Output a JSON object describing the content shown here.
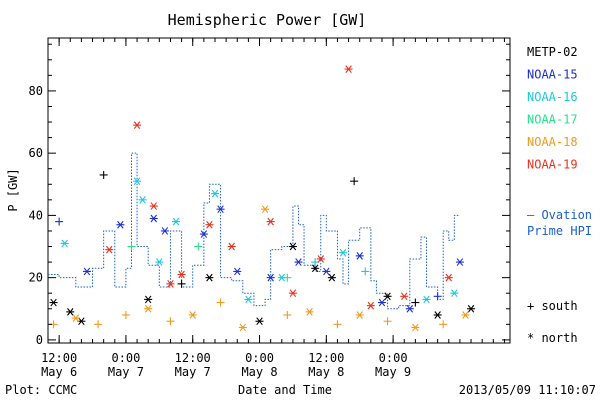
{
  "chart_data": {
    "type": "scatter",
    "title": "Hemispheric Power [GW]",
    "ylabel": "P [GW]",
    "xlabel": "Date and Time",
    "credit": "Plot: CCMC",
    "timestamp": "2013/05/09 11:10:07",
    "ylim": [
      -1,
      97
    ],
    "xlim": [
      "2013-05-06 10:00",
      "2013-05-09 21:00"
    ],
    "yticks": [
      0,
      20,
      40,
      60,
      80
    ],
    "ytick_labels": [
      "0",
      "20",
      "40",
      "60",
      "80"
    ],
    "xticks": [
      {
        "time": "2013-05-06 12:00",
        "line1": "12:00",
        "line2": "May 6"
      },
      {
        "time": "2013-05-07 00:00",
        "line1": "0:00",
        "line2": "May 7"
      },
      {
        "time": "2013-05-07 12:00",
        "line1": "12:00",
        "line2": "May 7"
      },
      {
        "time": "2013-05-08 00:00",
        "line1": "0:00",
        "line2": "May 8"
      },
      {
        "time": "2013-05-08 12:00",
        "line1": "12:00",
        "line2": "May 8"
      },
      {
        "time": "2013-05-09 00:00",
        "line1": "0:00",
        "line2": "May 9"
      }
    ],
    "grid": false,
    "legend_position": "right",
    "satellites": [
      {
        "name": "METP-02",
        "color": "#000000"
      },
      {
        "name": "NOAA-15",
        "color": "#1a2fd0"
      },
      {
        "name": "NOAA-16",
        "color": "#19c8e0"
      },
      {
        "name": "NOAA-17",
        "color": "#28e08c"
      },
      {
        "name": "NOAA-18",
        "color": "#f09a1e"
      },
      {
        "name": "NOAA-19",
        "color": "#e8321e"
      }
    ],
    "ovation_label": [
      "– Ovation",
      "Prime HPI"
    ],
    "ovation_color": "#1a5fd0",
    "marker_legend": [
      {
        "symbol": "+",
        "label": "south"
      },
      {
        "symbol": "*",
        "label": "north"
      }
    ],
    "ovation_steps": [
      [
        "2013-05-06 10:00",
        21
      ],
      [
        "2013-05-06 12:00",
        20
      ],
      [
        "2013-05-06 15:00",
        17
      ],
      [
        "2013-05-06 18:00",
        23
      ],
      [
        "2013-05-06 20:00",
        35
      ],
      [
        "2013-05-06 22:00",
        17
      ],
      [
        "2013-05-07 00:00",
        23
      ],
      [
        "2013-05-07 01:00",
        60
      ],
      [
        "2013-05-07 02:00",
        30
      ],
      [
        "2013-05-07 04:00",
        24
      ],
      [
        "2013-05-07 06:00",
        17
      ],
      [
        "2013-05-07 08:00",
        35
      ],
      [
        "2013-05-07 10:00",
        17
      ],
      [
        "2013-05-07 12:00",
        24
      ],
      [
        "2013-05-07 14:00",
        44
      ],
      [
        "2013-05-07 15:00",
        50
      ],
      [
        "2013-05-07 17:00",
        20
      ],
      [
        "2013-05-07 19:00",
        19
      ],
      [
        "2013-05-07 21:00",
        15
      ],
      [
        "2013-05-07 23:00",
        11
      ],
      [
        "2013-05-08 01:00",
        13
      ],
      [
        "2013-05-08 02:00",
        29
      ],
      [
        "2013-05-08 04:00",
        30
      ],
      [
        "2013-05-08 06:00",
        43
      ],
      [
        "2013-05-08 07:00",
        37
      ],
      [
        "2013-05-08 08:00",
        24
      ],
      [
        "2013-05-08 10:00",
        22
      ],
      [
        "2013-05-08 11:00",
        40
      ],
      [
        "2013-05-08 12:00",
        35
      ],
      [
        "2013-05-08 14:00",
        26
      ],
      [
        "2013-05-08 15:00",
        18
      ],
      [
        "2013-05-08 16:00",
        32
      ],
      [
        "2013-05-08 18:00",
        36
      ],
      [
        "2013-05-08 20:00",
        19
      ],
      [
        "2013-05-08 21:00",
        15
      ],
      [
        "2013-05-08 23:00",
        10
      ],
      [
        "2013-05-09 01:00",
        11
      ],
      [
        "2013-05-09 03:00",
        26
      ],
      [
        "2013-05-09 05:00",
        33
      ],
      [
        "2013-05-09 06:00",
        17
      ],
      [
        "2013-05-09 08:00",
        13
      ],
      [
        "2013-05-09 09:00",
        35
      ],
      [
        "2013-05-09 10:00",
        32
      ],
      [
        "2013-05-09 11:00",
        40
      ],
      [
        "2013-05-09 12:00",
        40
      ]
    ],
    "points": [
      {
        "sat": "METP-02",
        "hem": "north",
        "t": "2013-05-06 11:00",
        "p": 12
      },
      {
        "sat": "METP-02",
        "hem": "north",
        "t": "2013-05-06 14:00",
        "p": 9
      },
      {
        "sat": "METP-02",
        "hem": "north",
        "t": "2013-05-06 16:00",
        "p": 6
      },
      {
        "sat": "METP-02",
        "hem": "south",
        "t": "2013-05-06 20:00",
        "p": 53
      },
      {
        "sat": "METP-02",
        "hem": "north",
        "t": "2013-05-07 04:00",
        "p": 13
      },
      {
        "sat": "METP-02",
        "hem": "south",
        "t": "2013-05-07 10:00",
        "p": 18
      },
      {
        "sat": "METP-02",
        "hem": "north",
        "t": "2013-05-07 15:00",
        "p": 20
      },
      {
        "sat": "METP-02",
        "hem": "north",
        "t": "2013-05-08 00:00",
        "p": 6
      },
      {
        "sat": "METP-02",
        "hem": "north",
        "t": "2013-05-08 06:00",
        "p": 30
      },
      {
        "sat": "METP-02",
        "hem": "north",
        "t": "2013-05-08 10:00",
        "p": 23
      },
      {
        "sat": "METP-02",
        "hem": "north",
        "t": "2013-05-08 13:00",
        "p": 20
      },
      {
        "sat": "METP-02",
        "hem": "south",
        "t": "2013-05-08 17:00",
        "p": 51
      },
      {
        "sat": "METP-02",
        "hem": "north",
        "t": "2013-05-08 23:00",
        "p": 14
      },
      {
        "sat": "METP-02",
        "hem": "south",
        "t": "2013-05-09 04:00",
        "p": 12
      },
      {
        "sat": "METP-02",
        "hem": "north",
        "t": "2013-05-09 08:00",
        "p": 8
      },
      {
        "sat": "METP-02",
        "hem": "north",
        "t": "2013-05-09 14:00",
        "p": 10
      },
      {
        "sat": "NOAA-15",
        "hem": "south",
        "t": "2013-05-06 12:00",
        "p": 38
      },
      {
        "sat": "NOAA-15",
        "hem": "north",
        "t": "2013-05-06 17:00",
        "p": 22
      },
      {
        "sat": "NOAA-15",
        "hem": "north",
        "t": "2013-05-06 23:00",
        "p": 37
      },
      {
        "sat": "NOAA-15",
        "hem": "north",
        "t": "2013-05-07 05:00",
        "p": 39
      },
      {
        "sat": "NOAA-15",
        "hem": "north",
        "t": "2013-05-07 07:00",
        "p": 35
      },
      {
        "sat": "NOAA-15",
        "hem": "north",
        "t": "2013-05-07 14:00",
        "p": 34
      },
      {
        "sat": "NOAA-15",
        "hem": "north",
        "t": "2013-05-07 17:00",
        "p": 42
      },
      {
        "sat": "NOAA-15",
        "hem": "north",
        "t": "2013-05-07 20:00",
        "p": 22
      },
      {
        "sat": "NOAA-15",
        "hem": "north",
        "t": "2013-05-08 02:00",
        "p": 20
      },
      {
        "sat": "NOAA-15",
        "hem": "north",
        "t": "2013-05-08 07:00",
        "p": 25
      },
      {
        "sat": "NOAA-15",
        "hem": "north",
        "t": "2013-05-08 12:00",
        "p": 22
      },
      {
        "sat": "NOAA-15",
        "hem": "north",
        "t": "2013-05-08 18:00",
        "p": 27
      },
      {
        "sat": "NOAA-15",
        "hem": "north",
        "t": "2013-05-08 22:00",
        "p": 12
      },
      {
        "sat": "NOAA-15",
        "hem": "north",
        "t": "2013-05-09 03:00",
        "p": 10
      },
      {
        "sat": "NOAA-15",
        "hem": "south",
        "t": "2013-05-09 08:00",
        "p": 14
      },
      {
        "sat": "NOAA-15",
        "hem": "north",
        "t": "2013-05-09 12:00",
        "p": 25
      },
      {
        "sat": "NOAA-16",
        "hem": "north",
        "t": "2013-05-06 13:00",
        "p": 31
      },
      {
        "sat": "NOAA-16",
        "hem": "north",
        "t": "2013-05-07 02:00",
        "p": 51
      },
      {
        "sat": "NOAA-16",
        "hem": "north",
        "t": "2013-05-07 03:00",
        "p": 45
      },
      {
        "sat": "NOAA-16",
        "hem": "north",
        "t": "2013-05-07 06:00",
        "p": 25
      },
      {
        "sat": "NOAA-16",
        "hem": "north",
        "t": "2013-05-07 09:00",
        "p": 38
      },
      {
        "sat": "NOAA-16",
        "hem": "north",
        "t": "2013-05-07 16:00",
        "p": 47
      },
      {
        "sat": "NOAA-16",
        "hem": "north",
        "t": "2013-05-07 22:00",
        "p": 13
      },
      {
        "sat": "NOAA-16",
        "hem": "north",
        "t": "2013-05-08 04:00",
        "p": 20
      },
      {
        "sat": "NOAA-16",
        "hem": "south",
        "t": "2013-05-08 10:00",
        "p": 25
      },
      {
        "sat": "NOAA-16",
        "hem": "north",
        "t": "2013-05-08 15:00",
        "p": 28
      },
      {
        "sat": "NOAA-16",
        "hem": "south",
        "t": "2013-05-08 19:00",
        "p": 22
      },
      {
        "sat": "NOAA-16",
        "hem": "north",
        "t": "2013-05-09 06:00",
        "p": 13
      },
      {
        "sat": "NOAA-16",
        "hem": "north",
        "t": "2013-05-09 11:00",
        "p": 15
      },
      {
        "sat": "NOAA-17",
        "hem": "south",
        "t": "2013-05-07 01:00",
        "p": 30
      },
      {
        "sat": "NOAA-17",
        "hem": "south",
        "t": "2013-05-07 13:00",
        "p": 30
      },
      {
        "sat": "NOAA-17",
        "hem": "south",
        "t": "2013-05-08 05:00",
        "p": 20
      },
      {
        "sat": "NOAA-18",
        "hem": "south",
        "t": "2013-05-06 11:00",
        "p": 5
      },
      {
        "sat": "NOAA-18",
        "hem": "north",
        "t": "2013-05-06 15:00",
        "p": 7
      },
      {
        "sat": "NOAA-18",
        "hem": "south",
        "t": "2013-05-06 19:00",
        "p": 5
      },
      {
        "sat": "NOAA-18",
        "hem": "south",
        "t": "2013-05-07 00:00",
        "p": 8
      },
      {
        "sat": "NOAA-18",
        "hem": "north",
        "t": "2013-05-07 04:00",
        "p": 10
      },
      {
        "sat": "NOAA-18",
        "hem": "south",
        "t": "2013-05-07 08:00",
        "p": 6
      },
      {
        "sat": "NOAA-18",
        "hem": "north",
        "t": "2013-05-07 12:00",
        "p": 8
      },
      {
        "sat": "NOAA-18",
        "hem": "south",
        "t": "2013-05-07 17:00",
        "p": 12
      },
      {
        "sat": "NOAA-18",
        "hem": "north",
        "t": "2013-05-07 21:00",
        "p": 4
      },
      {
        "sat": "NOAA-18",
        "hem": "north",
        "t": "2013-05-08 01:00",
        "p": 42
      },
      {
        "sat": "NOAA-18",
        "hem": "south",
        "t": "2013-05-08 05:00",
        "p": 8
      },
      {
        "sat": "NOAA-18",
        "hem": "north",
        "t": "2013-05-08 09:00",
        "p": 9
      },
      {
        "sat": "NOAA-18",
        "hem": "south",
        "t": "2013-05-08 14:00",
        "p": 5
      },
      {
        "sat": "NOAA-18",
        "hem": "north",
        "t": "2013-05-08 18:00",
        "p": 8
      },
      {
        "sat": "NOAA-18",
        "hem": "south",
        "t": "2013-05-08 23:00",
        "p": 6
      },
      {
        "sat": "NOAA-18",
        "hem": "north",
        "t": "2013-05-09 04:00",
        "p": 4
      },
      {
        "sat": "NOAA-18",
        "hem": "south",
        "t": "2013-05-09 09:00",
        "p": 5
      },
      {
        "sat": "NOAA-18",
        "hem": "north",
        "t": "2013-05-09 13:00",
        "p": 8
      },
      {
        "sat": "NOAA-19",
        "hem": "north",
        "t": "2013-05-06 21:00",
        "p": 29
      },
      {
        "sat": "NOAA-19",
        "hem": "north",
        "t": "2013-05-07 02:00",
        "p": 69
      },
      {
        "sat": "NOAA-19",
        "hem": "north",
        "t": "2013-05-07 05:00",
        "p": 43
      },
      {
        "sat": "NOAA-19",
        "hem": "north",
        "t": "2013-05-07 08:00",
        "p": 18
      },
      {
        "sat": "NOAA-19",
        "hem": "north",
        "t": "2013-05-07 10:00",
        "p": 21
      },
      {
        "sat": "NOAA-19",
        "hem": "north",
        "t": "2013-05-07 15:00",
        "p": 37
      },
      {
        "sat": "NOAA-19",
        "hem": "north",
        "t": "2013-05-07 19:00",
        "p": 30
      },
      {
        "sat": "NOAA-19",
        "hem": "north",
        "t": "2013-05-08 02:00",
        "p": 38
      },
      {
        "sat": "NOAA-19",
        "hem": "north",
        "t": "2013-05-08 06:00",
        "p": 15
      },
      {
        "sat": "NOAA-19",
        "hem": "north",
        "t": "2013-05-08 11:00",
        "p": 26
      },
      {
        "sat": "NOAA-19",
        "hem": "north",
        "t": "2013-05-08 16:00",
        "p": 87
      },
      {
        "sat": "NOAA-19",
        "hem": "north",
        "t": "2013-05-08 20:00",
        "p": 11
      },
      {
        "sat": "NOAA-19",
        "hem": "north",
        "t": "2013-05-09 02:00",
        "p": 14
      },
      {
        "sat": "NOAA-19",
        "hem": "north",
        "t": "2013-05-09 10:00",
        "p": 20
      }
    ]
  }
}
